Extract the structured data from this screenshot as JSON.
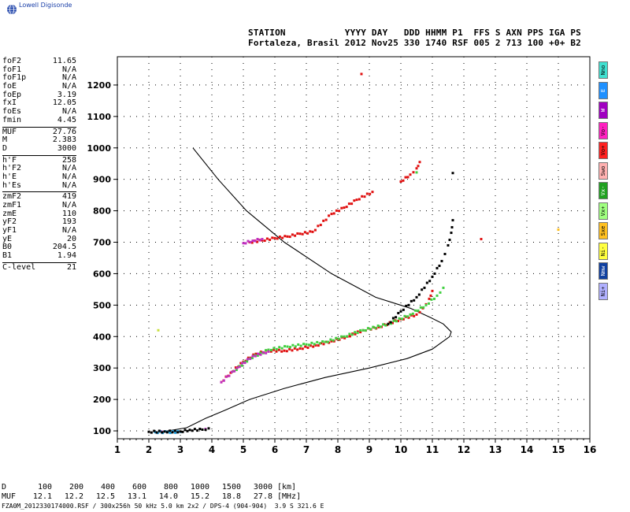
{
  "brand": {
    "logo_text": "Lowell Digisonde",
    "logo_icon": "globe-icon"
  },
  "header": {
    "line1": "STATION           YYYY DAY   DDD HHMM P1  FFS S AXN PPS IGA PS",
    "line2": "Fortaleza, Brasil 2012 Nov25 330 1740 RSF 005 2 713 100 +0+ B2"
  },
  "params_groups": [
    [
      {
        "name": "foF2",
        "value": "11.65"
      },
      {
        "name": "foF1",
        "value": "N/A"
      },
      {
        "name": "foF1p",
        "value": "N/A"
      },
      {
        "name": "foE",
        "value": "N/A"
      },
      {
        "name": "foEp",
        "value": "3.19"
      },
      {
        "name": "fxI",
        "value": "12.05"
      },
      {
        "name": "foEs",
        "value": "N/A"
      },
      {
        "name": "fmin",
        "value": "4.45"
      }
    ],
    [
      {
        "name": "MUF",
        "value": "27.76"
      },
      {
        "name": "M",
        "value": "2.383"
      },
      {
        "name": "D",
        "value": "3000"
      }
    ],
    [
      {
        "name": "h'F",
        "value": "258"
      },
      {
        "name": "h'F2",
        "value": "N/A"
      },
      {
        "name": "h'E",
        "value": "N/A"
      },
      {
        "name": "h'Es",
        "value": "N/A"
      }
    ],
    [
      {
        "name": "zmF2",
        "value": "419"
      },
      {
        "name": "zmF1",
        "value": "N/A"
      },
      {
        "name": "zmE",
        "value": "110"
      },
      {
        "name": "yF2",
        "value": "193"
      },
      {
        "name": "yF1",
        "value": "N/A"
      },
      {
        "name": "yE",
        "value": "20"
      },
      {
        "name": "B0",
        "value": "204.5"
      },
      {
        "name": "B1",
        "value": "1.94"
      }
    ],
    [
      {
        "name": "C-level",
        "value": "21"
      }
    ]
  ],
  "legend": [
    {
      "label": "Nno",
      "color": "#40e0d0"
    },
    {
      "label": "E",
      "color": "#1e90ff"
    },
    {
      "label": "W",
      "color": "#a000c0"
    },
    {
      "label": "Vo-",
      "color": "#ff20c0"
    },
    {
      "label": "Vo+",
      "color": "#ff2020"
    },
    {
      "label": "Swo",
      "color": "#ffb0b0"
    },
    {
      "label": "Vx-",
      "color": "#20a020"
    },
    {
      "label": "Vx+",
      "color": "#a0ff80"
    },
    {
      "label": "Sxe",
      "color": "#ffc020"
    },
    {
      "label": "Ni-",
      "color": "#ffff40"
    },
    {
      "label": "Nmw",
      "color": "#1040a0"
    },
    {
      "label": "Ni+",
      "color": "#b0b0ff"
    }
  ],
  "dmuf": {
    "d_label": "D",
    "d_values": [
      "100",
      "200",
      "400",
      "600",
      "800",
      "1000",
      "1500",
      "3000"
    ],
    "d_unit": "[km]",
    "muf_label": "MUF",
    "muf_values": [
      "12.1",
      "12.2",
      "12.5",
      "13.1",
      "14.0",
      "15.2",
      "18.8",
      "27.8"
    ],
    "muf_unit": "[MHz]"
  },
  "footer": "FZA0M_2012330174000.RSF / 300x256h 50 kHz 5.0 km 2x2 / DPS-4 (904-904)  3.9 S 321.6 E",
  "chart_data": {
    "type": "scatter",
    "x_ticks": [
      1,
      2,
      3,
      4,
      5,
      6,
      7,
      8,
      9,
      10,
      11,
      12,
      13,
      14,
      15,
      16
    ],
    "y_ticks": [
      100,
      200,
      300,
      400,
      500,
      600,
      700,
      800,
      900,
      1000,
      1100,
      1200
    ],
    "xlim": [
      1,
      16
    ],
    "ylim": [
      75,
      1290
    ],
    "grid": "dotted",
    "profile_curve": [
      [
        3.4,
        1000
      ],
      [
        4.2,
        900
      ],
      [
        5.1,
        800
      ],
      [
        6.3,
        700
      ],
      [
        7.8,
        600
      ],
      [
        9.2,
        525
      ],
      [
        10.3,
        490
      ],
      [
        10.95,
        460
      ],
      [
        11.35,
        440
      ],
      [
        11.6,
        415
      ],
      [
        11.55,
        400
      ],
      [
        11.0,
        360
      ],
      [
        10.2,
        330
      ],
      [
        9.0,
        300
      ],
      [
        7.6,
        270
      ],
      [
        6.3,
        235
      ],
      [
        5.2,
        200
      ],
      [
        4.4,
        165
      ],
      [
        3.8,
        140
      ],
      [
        3.2,
        110
      ],
      [
        2.3,
        95
      ]
    ],
    "traces": [
      {
        "name": "Vo+",
        "color": "#e01010",
        "points": [
          [
            4.3,
            255
          ],
          [
            4.6,
            285
          ],
          [
            5.0,
            320
          ],
          [
            5.4,
            345
          ],
          [
            5.8,
            355
          ],
          [
            6.3,
            355
          ],
          [
            6.8,
            362
          ],
          [
            7.3,
            372
          ],
          [
            7.8,
            385
          ],
          [
            8.3,
            400
          ],
          [
            8.8,
            420
          ],
          [
            9.3,
            430
          ],
          [
            10.0,
            455
          ],
          [
            10.5,
            470
          ],
          [
            10.7,
            490
          ],
          [
            10.9,
            520
          ],
          [
            11.0,
            545
          ],
          [
            5.2,
            700
          ],
          [
            5.6,
            706
          ],
          [
            6.0,
            713
          ],
          [
            6.4,
            718
          ],
          [
            6.8,
            727
          ],
          [
            7.2,
            733
          ],
          [
            7.8,
            790
          ],
          [
            8.2,
            810
          ],
          [
            8.6,
            835
          ],
          [
            9.1,
            860
          ],
          [
            10.0,
            893
          ],
          [
            10.3,
            915
          ],
          [
            10.5,
            935
          ],
          [
            10.6,
            955
          ],
          [
            8.75,
            1235
          ],
          [
            12.55,
            710
          ]
        ]
      },
      {
        "name": "Vx+",
        "color": "#40d040",
        "points": [
          [
            4.7,
            290
          ],
          [
            5.2,
            330
          ],
          [
            5.8,
            358
          ],
          [
            6.4,
            368
          ],
          [
            7.0,
            375
          ],
          [
            7.6,
            383
          ],
          [
            8.2,
            400
          ],
          [
            8.8,
            420
          ],
          [
            9.6,
            440
          ],
          [
            10.3,
            470
          ],
          [
            10.8,
            500
          ],
          [
            11.15,
            530
          ],
          [
            11.35,
            555
          ],
          [
            10.5,
            922
          ]
        ]
      },
      {
        "name": "Vo-",
        "color": "#c030c0",
        "points": [
          [
            4.3,
            255
          ],
          [
            4.8,
            300
          ],
          [
            5.3,
            338
          ],
          [
            5.8,
            352
          ],
          [
            2.4,
            98
          ],
          [
            3.8,
            106
          ],
          [
            5.0,
            697
          ],
          [
            5.3,
            705
          ],
          [
            5.6,
            710
          ]
        ]
      },
      {
        "name": "E",
        "color": "#20a0e0",
        "points": [
          [
            2.2,
            96
          ],
          [
            2.6,
            96
          ],
          [
            3.0,
            97
          ]
        ]
      },
      {
        "name": "Sxe",
        "color": "#ffc020",
        "points": [
          [
            15.0,
            740
          ]
        ]
      },
      {
        "name": "Ni-",
        "color": "#c8e040",
        "points": [
          [
            2.3,
            420
          ]
        ]
      },
      {
        "name": "Nno",
        "color": "#000000",
        "points": [
          [
            2.0,
            97
          ],
          [
            2.5,
            98
          ],
          [
            3.0,
            98
          ],
          [
            3.3,
            103
          ],
          [
            3.7,
            104
          ],
          [
            3.9,
            108
          ],
          [
            9.6,
            440
          ],
          [
            10.0,
            480
          ],
          [
            10.5,
            525
          ],
          [
            11.0,
            590
          ],
          [
            11.3,
            640
          ],
          [
            11.5,
            690
          ],
          [
            11.6,
            730
          ],
          [
            11.65,
            770
          ],
          [
            11.65,
            920
          ]
        ]
      }
    ]
  }
}
